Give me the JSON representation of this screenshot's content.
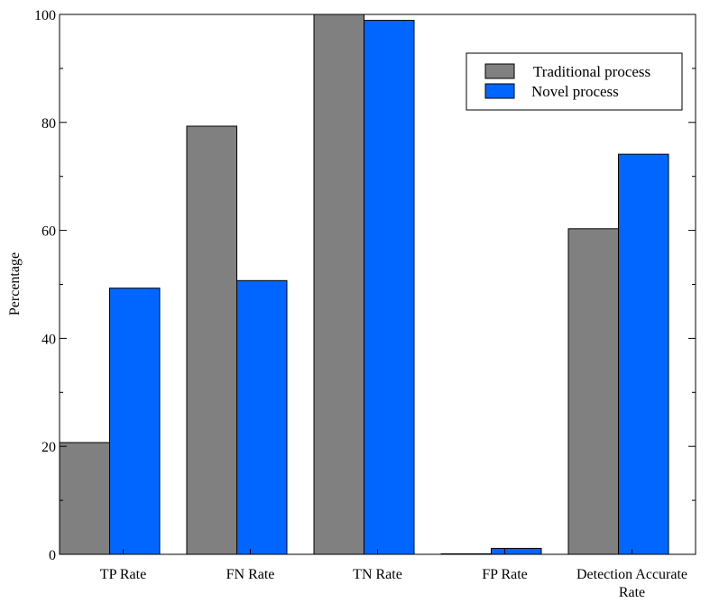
{
  "chart_data": {
    "type": "bar",
    "categories": [
      "TP Rate",
      "FN Rate",
      "TN Rate",
      "FP Rate",
      "Detection Accurate Rate"
    ],
    "series": [
      {
        "name": "Traditional process",
        "color": "#808080",
        "values": [
          20.7,
          79.3,
          100,
          0,
          60.3
        ]
      },
      {
        "name": "Novel process",
        "color": "#0066ff",
        "values": [
          49.3,
          50.7,
          98.9,
          1.1,
          74.1
        ]
      }
    ],
    "title": "",
    "xlabel": "",
    "ylabel": "Percentage",
    "ylim": [
      0,
      100
    ],
    "yticks": [
      0,
      20,
      40,
      60,
      80,
      100
    ],
    "grid": false,
    "legend": "top-right"
  }
}
